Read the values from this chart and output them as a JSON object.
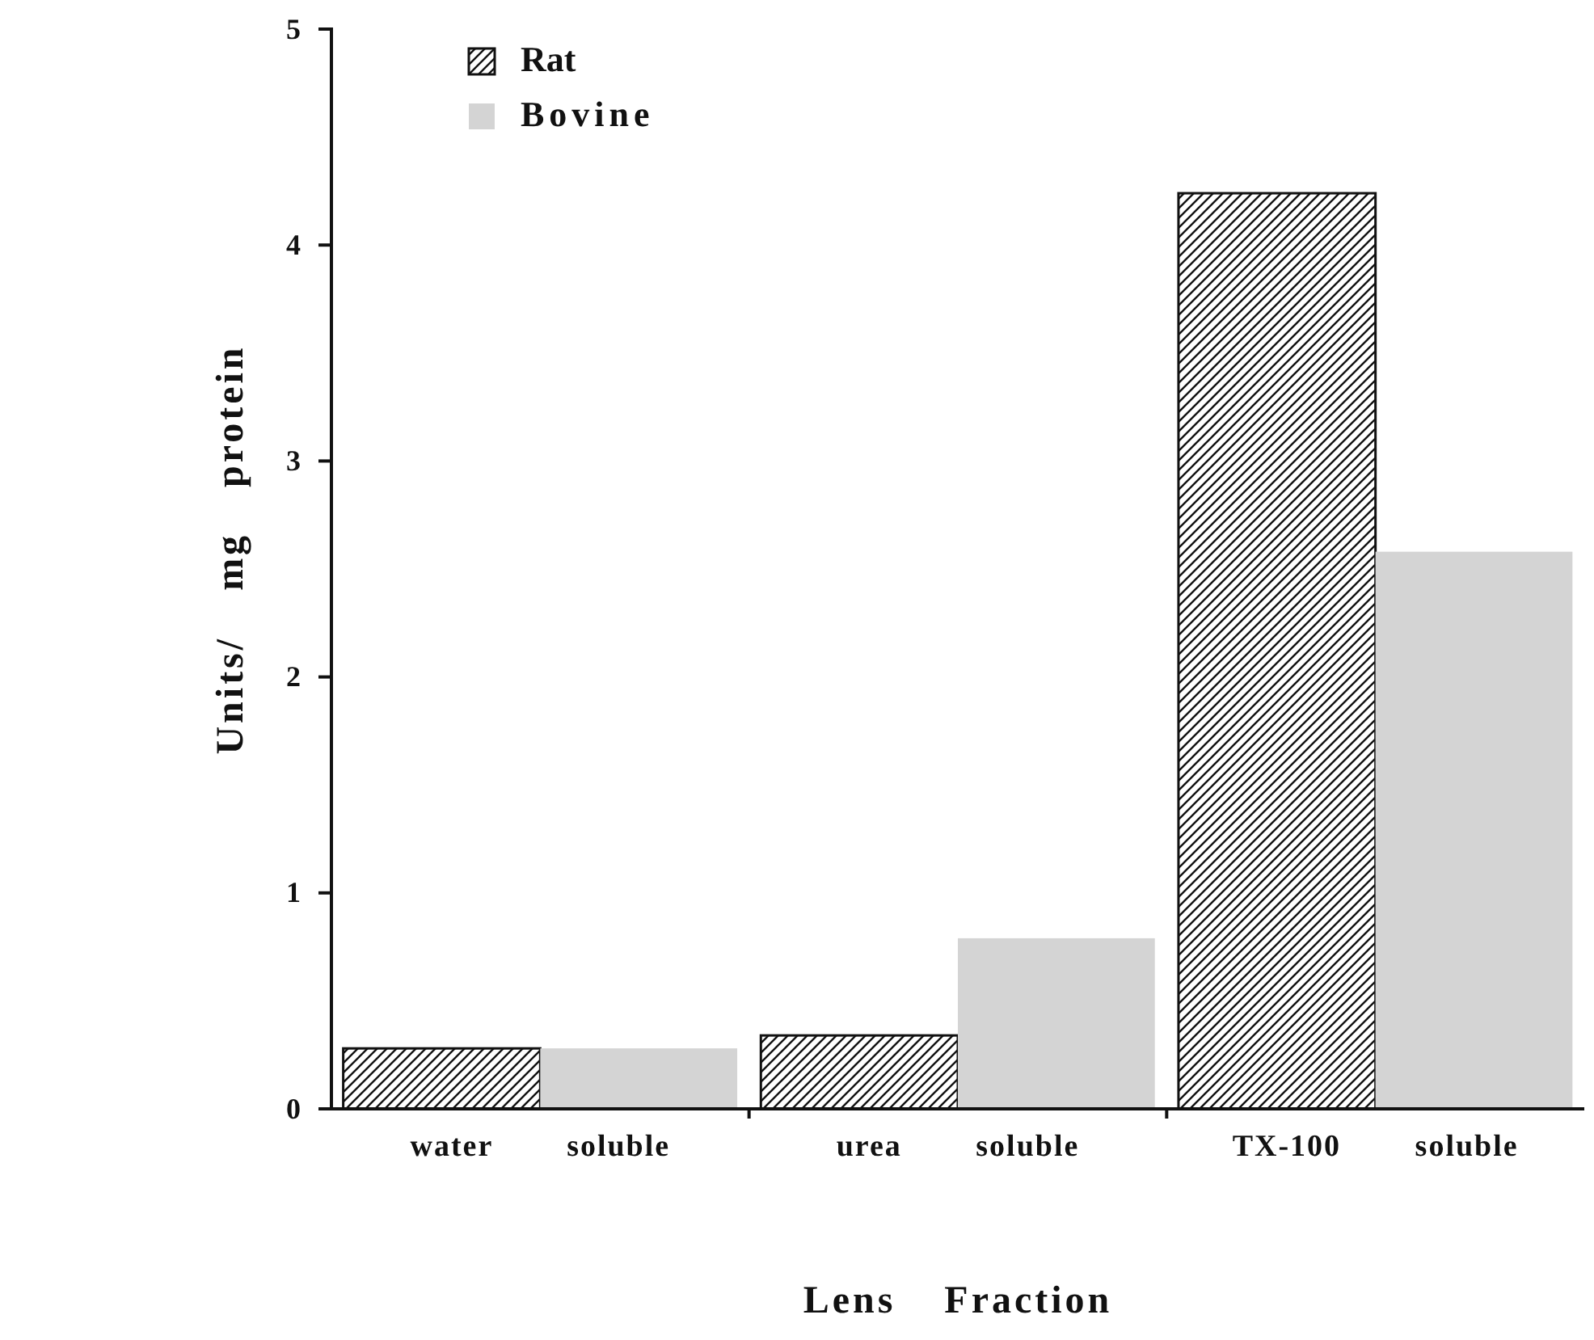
{
  "chart_data": {
    "type": "bar",
    "xlabel": "Lens Fraction",
    "ylabel": "Units/ mg protein",
    "categories": [
      "water soluble",
      "urea soluble",
      "TX-100 soluble"
    ],
    "series": [
      {
        "name": "Rat",
        "color": "#111111",
        "values": [
          0.28,
          0.34,
          4.24
        ]
      },
      {
        "name": "Bovine",
        "color": "#d4d4d4",
        "values": [
          0.28,
          0.79,
          2.58
        ]
      }
    ],
    "ylim": [
      0,
      5
    ],
    "yticks": [
      0,
      1,
      2,
      3,
      4,
      5
    ],
    "grid": false,
    "legend": "top left"
  }
}
